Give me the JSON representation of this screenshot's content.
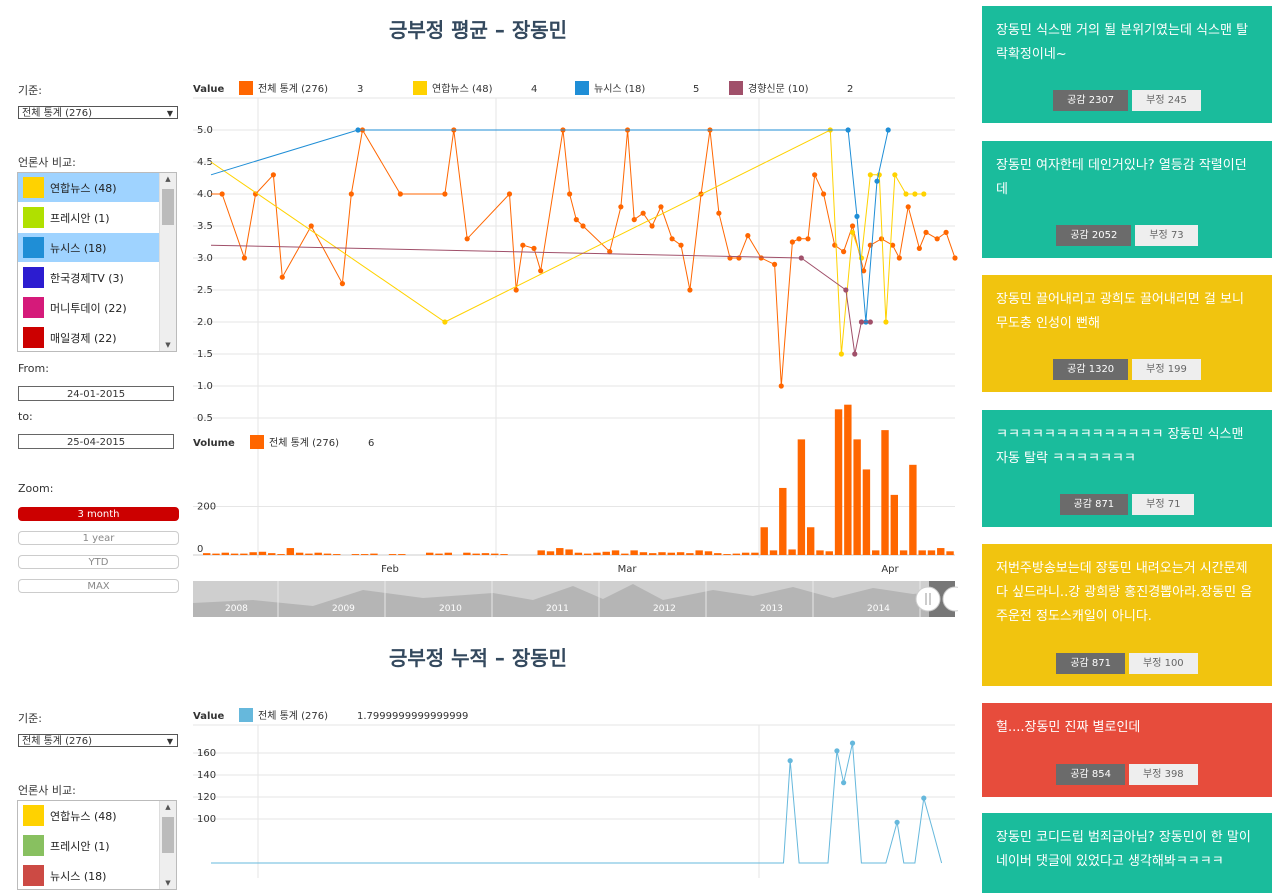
{
  "chart1": {
    "title": "긍부정 평균 – 장동민",
    "criterion_label": "기준:",
    "criterion_value": "전체 통계 (276)",
    "compare_label": "언론사 비교:",
    "press": [
      {
        "name": "연합뉴스 (48)",
        "color": "#ffd200",
        "selected": true
      },
      {
        "name": "프레시안 (1)",
        "color": "#b0e000",
        "selected": false
      },
      {
        "name": "뉴시스 (18)",
        "color": "#1f8ed6",
        "selected": true
      },
      {
        "name": "한국경제TV (3)",
        "color": "#2c1cd0",
        "selected": false
      },
      {
        "name": "머니투데이 (22)",
        "color": "#d51a7a",
        "selected": false
      },
      {
        "name": "매일경제 (22)",
        "color": "#cc0000",
        "selected": false
      }
    ],
    "from_label": "From:",
    "from_value": "24-01-2015",
    "to_label": "to:",
    "to_value": "25-04-2015",
    "zoom_label": "Zoom:",
    "zoom_buttons": [
      {
        "label": "3 month",
        "active": true
      },
      {
        "label": "1 year",
        "active": false
      },
      {
        "label": "YTD",
        "active": false
      },
      {
        "label": "MAX",
        "active": false
      }
    ],
    "value_legend": {
      "title": "Value",
      "items": [
        {
          "name": "전체 통계 (276)",
          "value": "3",
          "color": "#ff6600"
        },
        {
          "name": "연합뉴스 (48)",
          "value": "4",
          "color": "#ffd200"
        },
        {
          "name": "뉴시스 (18)",
          "value": "5",
          "color": "#1f8ed6"
        },
        {
          "name": "경향신문 (10)",
          "value": "2",
          "color": "#a0506a"
        }
      ]
    },
    "volume_legend": {
      "title": "Volume",
      "items": [
        {
          "name": "전체 통계 (276)",
          "value": "6",
          "color": "#ff6600"
        }
      ]
    },
    "navigator_years": [
      "2008",
      "2009",
      "2010",
      "2011",
      "2012",
      "2013",
      "2014"
    ]
  },
  "chart2": {
    "title": "긍부정 누적 – 장동민",
    "criterion_label": "기준:",
    "criterion_value": "전체 통계 (276)",
    "compare_label": "언론사 비교:",
    "press": [
      {
        "name": "연합뉴스 (48)",
        "color": "#ffd200",
        "selected": false
      },
      {
        "name": "프레시안 (1)",
        "color": "#88c060",
        "selected": false
      },
      {
        "name": "뉴시스 (18)",
        "color": "#cc4a44",
        "selected": false
      }
    ],
    "value_legend": {
      "title": "Value",
      "items": [
        {
          "name": "전체 통계 (276)",
          "value": "1.7999999999999999",
          "color": "#66b8dc"
        }
      ]
    }
  },
  "chart_data": [
    {
      "type": "line",
      "title": "긍부정 평균 – 장동민",
      "ylim": [
        0.5,
        5.0
      ],
      "yticks": [
        "5.0",
        "4.5",
        "4.0",
        "3.5",
        "3.0",
        "2.5",
        "2.0",
        "1.5",
        "1.0",
        "0.5"
      ],
      "x_ticks": [],
      "series": [
        {
          "name": "전체 통계 (276)",
          "color": "#ff6600",
          "values": [
            [
              0.0,
              4.0
            ],
            [
              0.5,
              4.0
            ],
            [
              1.5,
              3.0
            ],
            [
              2.0,
              4.0
            ],
            [
              2.8,
              4.3
            ],
            [
              3.2,
              2.7
            ],
            [
              4.5,
              3.5
            ],
            [
              5.9,
              2.6
            ],
            [
              6.3,
              4.0
            ],
            [
              6.8,
              5.0
            ],
            [
              8.5,
              4.0
            ],
            [
              10.5,
              4.0
            ],
            [
              10.9,
              5.0
            ],
            [
              11.5,
              3.3
            ],
            [
              13.4,
              4.0
            ],
            [
              13.7,
              2.5
            ],
            [
              14.0,
              3.2
            ],
            [
              14.5,
              3.15
            ],
            [
              14.8,
              2.8
            ],
            [
              15.8,
              5.0
            ],
            [
              16.1,
              4.0
            ],
            [
              16.4,
              3.6
            ],
            [
              16.7,
              3.5
            ],
            [
              17.9,
              3.1
            ],
            [
              18.4,
              3.8
            ],
            [
              18.7,
              5.0
            ],
            [
              19.0,
              3.6
            ],
            [
              19.4,
              3.7
            ],
            [
              19.8,
              3.5
            ],
            [
              20.2,
              3.8
            ],
            [
              20.7,
              3.3
            ],
            [
              21.1,
              3.2
            ],
            [
              21.5,
              2.5
            ],
            [
              22.0,
              4.0
            ],
            [
              22.4,
              5.0
            ],
            [
              22.8,
              3.7
            ],
            [
              23.3,
              3.0
            ],
            [
              23.7,
              3.0
            ],
            [
              24.1,
              3.35
            ],
            [
              24.7,
              3.0
            ],
            [
              25.3,
              2.9
            ],
            [
              25.6,
              1.0
            ],
            [
              26.1,
              3.25
            ],
            [
              26.4,
              3.3
            ],
            [
              26.8,
              3.3
            ],
            [
              27.1,
              4.3
            ],
            [
              27.5,
              4.0
            ],
            [
              28.0,
              3.2
            ],
            [
              28.4,
              3.1
            ],
            [
              28.8,
              3.5
            ],
            [
              29.3,
              2.8
            ],
            [
              29.6,
              3.2
            ],
            [
              30.1,
              3.3
            ],
            [
              30.6,
              3.2
            ],
            [
              30.9,
              3.0
            ],
            [
              31.3,
              3.8
            ],
            [
              31.8,
              3.15
            ],
            [
              32.1,
              3.4
            ],
            [
              32.6,
              3.3
            ],
            [
              33.0,
              3.4
            ],
            [
              33.4,
              3.0
            ]
          ]
        },
        {
          "name": "연합뉴스 (48)",
          "color": "#ffd200",
          "values": [
            [
              0.0,
              4.5
            ],
            [
              10.5,
              2.0
            ],
            [
              27.8,
              5.0
            ],
            [
              28.3,
              1.5
            ],
            [
              28.8,
              3.4
            ],
            [
              29.2,
              3.0
            ],
            [
              29.6,
              4.3
            ],
            [
              30.0,
              4.3
            ],
            [
              30.3,
              2.0
            ],
            [
              30.7,
              4.3
            ],
            [
              31.2,
              4.0
            ],
            [
              31.6,
              4.0
            ],
            [
              32.0,
              4.0
            ]
          ]
        },
        {
          "name": "뉴시스 (18)",
          "color": "#1f8ed6",
          "values": [
            [
              0.0,
              4.3
            ],
            [
              6.6,
              5.0
            ],
            [
              28.6,
              5.0
            ],
            [
              29.0,
              3.65
            ],
            [
              29.4,
              2.0
            ],
            [
              29.9,
              4.2
            ],
            [
              30.4,
              5.0
            ]
          ]
        },
        {
          "name": "경향신문 (10)",
          "color": "#a0506a",
          "values": [
            [
              0.0,
              3.2
            ],
            [
              26.5,
              3.0
            ],
            [
              28.5,
              2.5
            ],
            [
              28.9,
              1.5
            ],
            [
              29.2,
              2.0
            ],
            [
              29.6,
              2.0
            ]
          ]
        }
      ]
    },
    {
      "type": "bar",
      "title": "",
      "ylim": [
        0,
        400
      ],
      "yticks": [
        "200",
        "0"
      ],
      "x_ticks": [
        "Feb",
        "Mar",
        "Apr"
      ],
      "series": [
        {
          "name": "전체 통계 (276)",
          "color": "#ff6600",
          "values": [
            [
              0,
              4
            ],
            [
              1,
              3
            ],
            [
              2,
              5
            ],
            [
              3,
              3
            ],
            [
              4,
              3
            ],
            [
              5,
              6
            ],
            [
              6,
              7
            ],
            [
              7,
              4
            ],
            [
              8,
              2
            ],
            [
              9,
              15
            ],
            [
              10,
              5
            ],
            [
              11,
              3
            ],
            [
              12,
              5
            ],
            [
              13,
              3
            ],
            [
              14,
              2
            ],
            [
              16,
              2
            ],
            [
              17,
              2
            ],
            [
              18,
              3
            ],
            [
              20,
              2
            ],
            [
              21,
              2
            ],
            [
              24,
              5
            ],
            [
              25,
              3
            ],
            [
              26,
              5
            ],
            [
              28,
              5
            ],
            [
              29,
              3
            ],
            [
              30,
              4
            ],
            [
              31,
              3
            ],
            [
              32,
              2
            ],
            [
              36,
              10
            ],
            [
              37,
              8
            ],
            [
              38,
              15
            ],
            [
              39,
              12
            ],
            [
              40,
              5
            ],
            [
              41,
              3
            ],
            [
              42,
              5
            ],
            [
              43,
              7
            ],
            [
              44,
              10
            ],
            [
              45,
              3
            ],
            [
              46,
              10
            ],
            [
              47,
              6
            ],
            [
              48,
              4
            ],
            [
              49,
              6
            ],
            [
              50,
              5
            ],
            [
              51,
              6
            ],
            [
              52,
              4
            ],
            [
              53,
              10
            ],
            [
              54,
              8
            ],
            [
              55,
              4
            ],
            [
              56,
              2
            ],
            [
              57,
              3
            ],
            [
              58,
              5
            ],
            [
              59,
              5
            ],
            [
              60,
              60
            ],
            [
              61,
              10
            ],
            [
              62,
              145
            ],
            [
              63,
              12
            ],
            [
              64,
              250
            ],
            [
              65,
              60
            ],
            [
              66,
              10
            ],
            [
              67,
              8
            ],
            [
              68,
              315
            ],
            [
              69,
              325
            ],
            [
              70,
              250
            ],
            [
              71,
              185
            ],
            [
              72,
              10
            ],
            [
              73,
              270
            ],
            [
              74,
              130
            ],
            [
              75,
              10
            ],
            [
              76,
              195
            ],
            [
              77,
              10
            ],
            [
              78,
              10
            ],
            [
              79,
              15
            ],
            [
              80,
              8
            ]
          ]
        }
      ]
    },
    {
      "type": "line",
      "title": "긍부정 누적 – 장동민",
      "ylim": [
        0,
        180
      ],
      "yticks": [
        "160",
        "140",
        "120",
        "100"
      ],
      "x_ticks": [],
      "series": [
        {
          "name": "전체 통계 (276)",
          "color": "#66b8dc",
          "values": [
            [
              0,
              60
            ],
            [
              25.7,
              60
            ],
            [
              26.0,
              153
            ],
            [
              26.4,
              60
            ],
            [
              27.7,
              60
            ],
            [
              28.1,
              162
            ],
            [
              28.4,
              133
            ],
            [
              28.8,
              169
            ],
            [
              29.2,
              60
            ],
            [
              30.3,
              60
            ],
            [
              30.8,
              97
            ],
            [
              31.1,
              60
            ],
            [
              31.6,
              60
            ],
            [
              32.0,
              119
            ],
            [
              32.4,
              90
            ],
            [
              32.8,
              60
            ]
          ]
        }
      ]
    }
  ],
  "comments": [
    {
      "text": "장동민 식스맨 거의 될 분위기였는데 식스맨 탈락확정이네~",
      "color": "#1abc9c",
      "like": "공감 2307",
      "dislike": "부정 245"
    },
    {
      "text": "장동민 여자한테 데인거있나? 열등감 작렬이던데",
      "color": "#1abc9c",
      "like": "공감 2052",
      "dislike": "부정 73"
    },
    {
      "text": "장동민 끌어내리고 광희도 끌어내리면 걸 보니 무도충 인성이 뻔해",
      "color": "#f1c40f",
      "like": "공감 1320",
      "dislike": "부정 199"
    },
    {
      "text": "ㅋㅋㅋㅋㅋㅋㅋㅋㅋㅋㅋㅋㅋㅋ 장동민 식스맨 자동 탈락 ㅋㅋㅋㅋㅋㅋㅋ",
      "color": "#1abc9c",
      "like": "공감 871",
      "dislike": "부정 71"
    },
    {
      "text": "저번주방송보는데 장동민 내려오는거 시간문제다 싶드라니..강 광희랑 홍진경뽑아라.장동민 음주운전 정도스캐일이 아니다.",
      "color": "#f1c40f",
      "like": "공감 871",
      "dislike": "부정 100"
    },
    {
      "text": "헐....장동민 진짜 별로인데",
      "color": "#e74c3c",
      "like": "공감 854",
      "dislike": "부정 398"
    },
    {
      "text": "장동민 코디드립 범죄급아님? 장동민이 한 말이 네이버 댓글에 있었다고 생각해봐ㅋㅋㅋㅋ",
      "color": "#1abc9c",
      "like": "",
      "dislike": ""
    }
  ]
}
